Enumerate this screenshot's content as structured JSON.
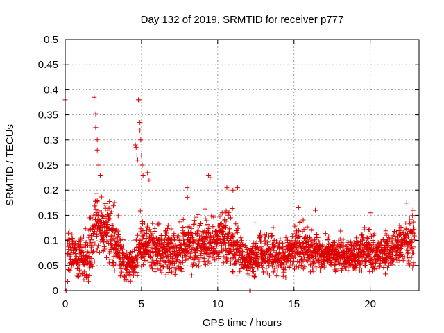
{
  "chart_data": {
    "type": "scatter",
    "title": "Day 132 of 2019, SRMTID for receiver p777",
    "xlabel": "GPS time / hours",
    "ylabel": "SRMTID / TECUs",
    "xlim": [
      0,
      23.2
    ],
    "ylim": [
      0,
      0.5
    ],
    "xticks": [
      0,
      5,
      10,
      15,
      20
    ],
    "xtick_labels": [
      "0",
      "5",
      "10",
      "15",
      "20"
    ],
    "yticks": [
      0,
      0.05,
      0.1,
      0.15,
      0.2,
      0.25,
      0.3,
      0.35,
      0.4,
      0.45,
      0.5
    ],
    "ytick_labels": [
      "0",
      "0.05",
      "0.1",
      "0.15",
      "0.2",
      "0.25",
      "0.3",
      "0.35",
      "0.4",
      "0.45",
      "0.5"
    ],
    "grid": true,
    "series": [
      {
        "name": "SRMTID",
        "marker": "+",
        "color": "#dd0000",
        "profile": [
          [
            0.0,
            0.08,
            0.1
          ],
          [
            0.5,
            0.07,
            0.04
          ],
          [
            1.0,
            0.06,
            0.04
          ],
          [
            1.5,
            0.07,
            0.05
          ],
          [
            2.0,
            0.13,
            0.06
          ],
          [
            2.5,
            0.12,
            0.06
          ],
          [
            3.0,
            0.11,
            0.06
          ],
          [
            3.5,
            0.08,
            0.05
          ],
          [
            4.0,
            0.05,
            0.03
          ],
          [
            4.5,
            0.06,
            0.04
          ],
          [
            5.0,
            0.09,
            0.05
          ],
          [
            5.5,
            0.09,
            0.05
          ],
          [
            6.0,
            0.08,
            0.05
          ],
          [
            6.5,
            0.08,
            0.05
          ],
          [
            7.0,
            0.08,
            0.05
          ],
          [
            7.5,
            0.08,
            0.05
          ],
          [
            8.0,
            0.09,
            0.05
          ],
          [
            8.5,
            0.09,
            0.05
          ],
          [
            9.0,
            0.1,
            0.05
          ],
          [
            9.5,
            0.1,
            0.05
          ],
          [
            10.0,
            0.1,
            0.05
          ],
          [
            10.5,
            0.11,
            0.06
          ],
          [
            11.0,
            0.09,
            0.05
          ],
          [
            11.5,
            0.07,
            0.04
          ],
          [
            12.0,
            0.06,
            0.03
          ],
          [
            12.5,
            0.07,
            0.04
          ],
          [
            13.0,
            0.07,
            0.04
          ],
          [
            13.5,
            0.08,
            0.04
          ],
          [
            14.0,
            0.07,
            0.04
          ],
          [
            14.5,
            0.07,
            0.04
          ],
          [
            15.0,
            0.08,
            0.04
          ],
          [
            15.5,
            0.09,
            0.05
          ],
          [
            16.0,
            0.08,
            0.04
          ],
          [
            16.5,
            0.08,
            0.04
          ],
          [
            17.0,
            0.07,
            0.03
          ],
          [
            17.5,
            0.07,
            0.03
          ],
          [
            18.0,
            0.07,
            0.03
          ],
          [
            18.5,
            0.07,
            0.03
          ],
          [
            19.0,
            0.07,
            0.03
          ],
          [
            19.5,
            0.08,
            0.04
          ],
          [
            20.0,
            0.08,
            0.04
          ],
          [
            20.5,
            0.07,
            0.04
          ],
          [
            21.0,
            0.08,
            0.04
          ],
          [
            21.5,
            0.08,
            0.04
          ],
          [
            22.0,
            0.09,
            0.04
          ],
          [
            22.5,
            0.1,
            0.05
          ],
          [
            22.9,
            0.1,
            0.05
          ]
        ],
        "points": [
          [
            0.0,
            0.45
          ],
          [
            0.0,
            0.38
          ],
          [
            0.0,
            0.18
          ],
          [
            0.05,
            0.0
          ],
          [
            0.1,
            0.0
          ],
          [
            1.9,
            0.385
          ],
          [
            2.0,
            0.352
          ],
          [
            2.0,
            0.325
          ],
          [
            2.1,
            0.3
          ],
          [
            2.1,
            0.28
          ],
          [
            2.2,
            0.25
          ],
          [
            2.3,
            0.23
          ],
          [
            4.6,
            0.29
          ],
          [
            4.65,
            0.285
          ],
          [
            4.7,
            0.27
          ],
          [
            4.75,
            0.26
          ],
          [
            4.8,
            0.38
          ],
          [
            4.85,
            0.38
          ],
          [
            4.9,
            0.335
          ],
          [
            4.9,
            0.32
          ],
          [
            4.95,
            0.3
          ],
          [
            5.0,
            0.27
          ],
          [
            5.05,
            0.25
          ],
          [
            5.1,
            0.23
          ],
          [
            5.4,
            0.235
          ],
          [
            5.5,
            0.22
          ],
          [
            8.0,
            0.205
          ],
          [
            9.4,
            0.23
          ],
          [
            9.5,
            0.225
          ],
          [
            10.6,
            0.205
          ],
          [
            11.0,
            0.2
          ],
          [
            11.3,
            0.205
          ],
          [
            12.1,
            0.0
          ],
          [
            12.15,
            0.0
          ],
          [
            15.3,
            0.165
          ],
          [
            16.4,
            0.16
          ],
          [
            20.0,
            0.155
          ],
          [
            22.8,
            0.16
          ]
        ]
      }
    ]
  }
}
